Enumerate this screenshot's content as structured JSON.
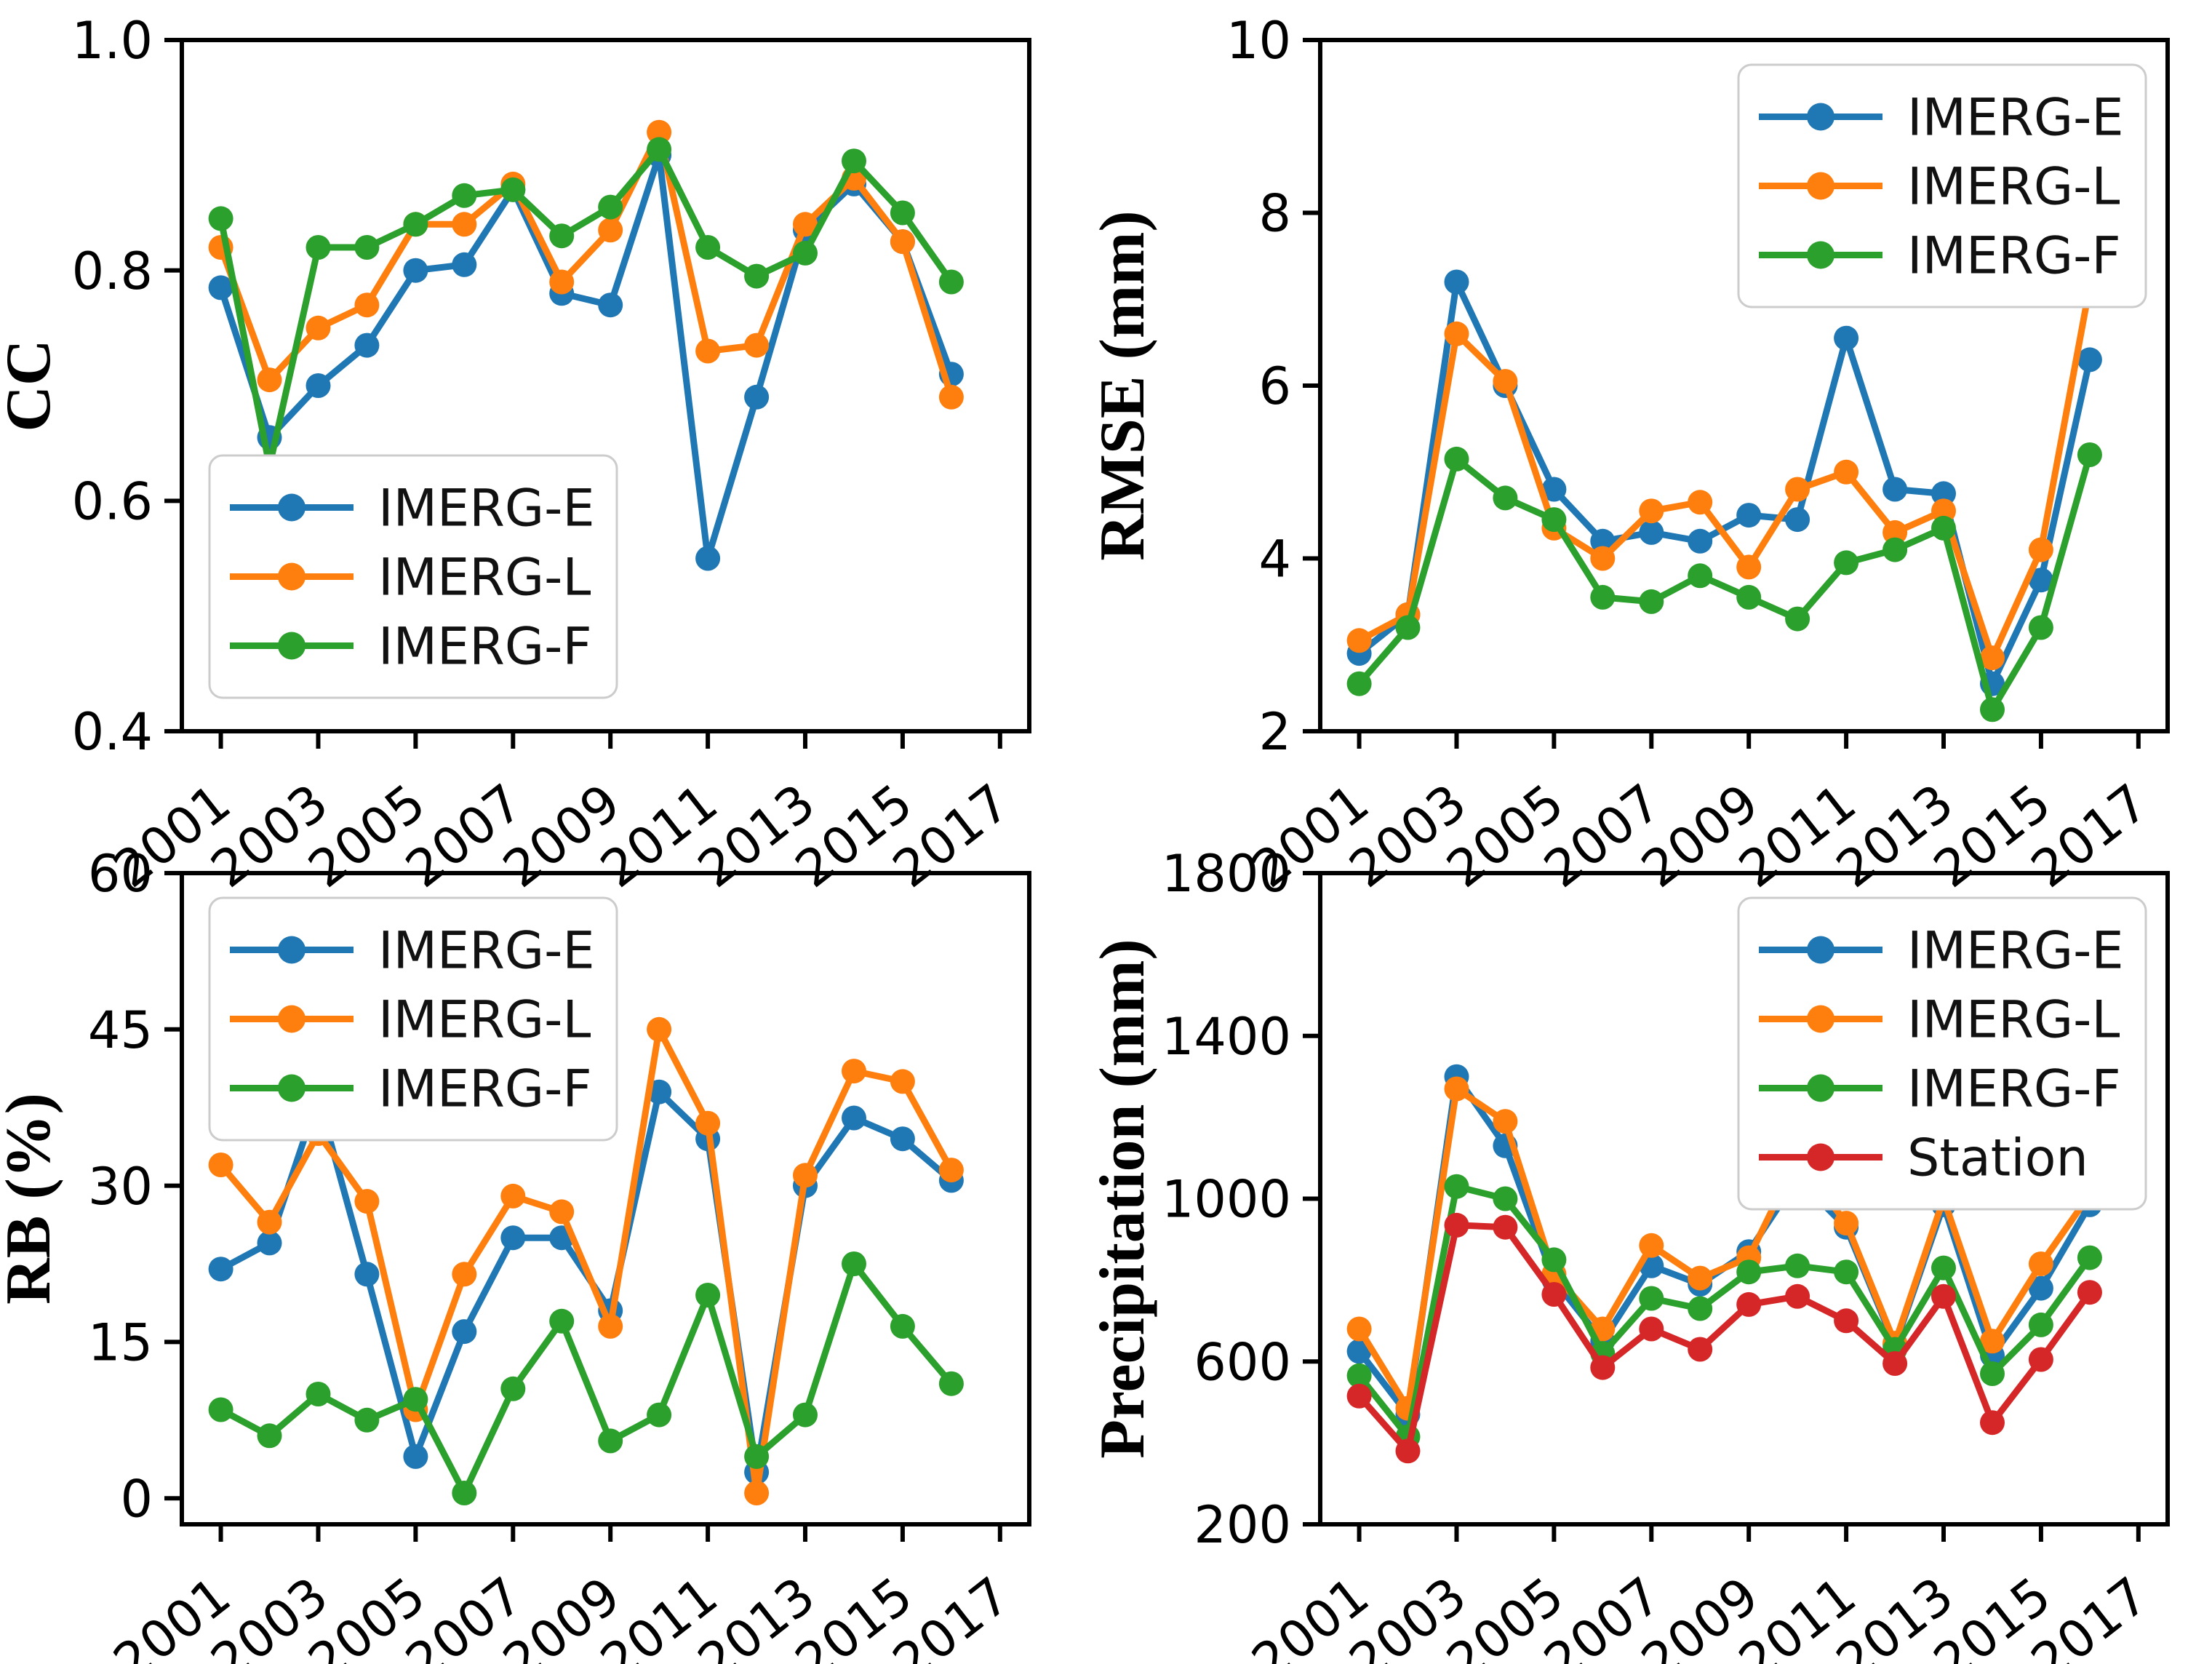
{
  "figure": {
    "background": "#ffffff",
    "colors": {
      "IMERG-E": "#1f77b4",
      "IMERG-L": "#ff7f0e",
      "IMERG-F": "#2ca02c",
      "Station": "#d62728"
    },
    "x_tick_labels": [
      "2001",
      "2003",
      "2005",
      "2007",
      "2009",
      "2011",
      "2013",
      "2015",
      "2017"
    ],
    "x_tick_years": [
      2001,
      2003,
      2005,
      2007,
      2009,
      2011,
      2013,
      2015,
      2017
    ]
  },
  "chart_data": [
    {
      "id": "cc",
      "type": "line",
      "title": "",
      "xlabel": "",
      "ylabel": "CC",
      "grid": false,
      "legend_position": "lower-left",
      "xlim": [
        2000.2,
        2017.6
      ],
      "ylim": [
        0.4,
        1.0
      ],
      "yticks": [
        0.4,
        0.6,
        0.8,
        1.0
      ],
      "ytick_labels": [
        "0.4",
        "0.6",
        "0.8",
        "1.0"
      ],
      "x": [
        2001,
        2002,
        2003,
        2004,
        2005,
        2006,
        2007,
        2008,
        2009,
        2010,
        2011,
        2012,
        2013,
        2014,
        2015,
        2016
      ],
      "series": [
        {
          "name": "IMERG-E",
          "color": "#1f77b4",
          "values": [
            0.785,
            0.655,
            0.7,
            0.735,
            0.8,
            0.805,
            0.87,
            0.78,
            0.77,
            0.9,
            0.55,
            0.69,
            0.835,
            0.875,
            0.825,
            0.71
          ]
        },
        {
          "name": "IMERG-L",
          "color": "#ff7f0e",
          "values": [
            0.82,
            0.705,
            0.75,
            0.77,
            0.84,
            0.84,
            0.875,
            0.79,
            0.835,
            0.92,
            0.73,
            0.735,
            0.84,
            0.88,
            0.825,
            0.69
          ]
        },
        {
          "name": "IMERG-F",
          "color": "#2ca02c",
          "values": [
            0.845,
            0.63,
            0.82,
            0.82,
            0.84,
            0.865,
            0.87,
            0.83,
            0.855,
            0.905,
            0.82,
            0.795,
            0.815,
            0.895,
            0.85,
            0.79
          ]
        }
      ]
    },
    {
      "id": "rmse",
      "type": "line",
      "title": "",
      "xlabel": "",
      "ylabel": "RMSE (mm)",
      "grid": false,
      "legend_position": "upper-right",
      "xlim": [
        2000.2,
        2017.6
      ],
      "ylim": [
        2,
        10
      ],
      "yticks": [
        2,
        4,
        6,
        8,
        10
      ],
      "ytick_labels": [
        "2",
        "4",
        "6",
        "8",
        "10"
      ],
      "x": [
        2001,
        2002,
        2003,
        2004,
        2005,
        2006,
        2007,
        2008,
        2009,
        2010,
        2011,
        2012,
        2013,
        2014,
        2015,
        2016
      ],
      "series": [
        {
          "name": "IMERG-E",
          "color": "#1f77b4",
          "values": [
            2.9,
            3.35,
            7.2,
            6.0,
            4.8,
            4.2,
            4.3,
            4.2,
            4.5,
            4.45,
            6.55,
            4.8,
            4.75,
            2.55,
            3.75,
            6.3
          ]
        },
        {
          "name": "IMERG-L",
          "color": "#ff7f0e",
          "values": [
            3.05,
            3.35,
            6.6,
            6.05,
            4.35,
            4.0,
            4.55,
            4.65,
            3.9,
            4.8,
            5.0,
            4.3,
            4.55,
            2.85,
            4.1,
            7.15
          ]
        },
        {
          "name": "IMERG-F",
          "color": "#2ca02c",
          "values": [
            2.55,
            3.2,
            5.15,
            4.7,
            4.45,
            3.55,
            3.5,
            3.8,
            3.55,
            3.3,
            3.95,
            4.1,
            4.35,
            2.25,
            3.2,
            5.2
          ]
        }
      ]
    },
    {
      "id": "rb",
      "type": "line",
      "title": "",
      "xlabel": "",
      "ylabel": "RB (%)",
      "grid": false,
      "legend_position": "upper-left",
      "xlim": [
        2000.2,
        2017.6
      ],
      "ylim": [
        -2.5,
        60
      ],
      "yticks": [
        0,
        15,
        30,
        45,
        60
      ],
      "ytick_labels": [
        "0",
        "15",
        "30",
        "45",
        "60"
      ],
      "x": [
        2001,
        2002,
        2003,
        2004,
        2005,
        2006,
        2007,
        2008,
        2009,
        2010,
        2011,
        2012,
        2013,
        2014,
        2015,
        2016
      ],
      "series": [
        {
          "name": "IMERG-E",
          "color": "#1f77b4",
          "values": [
            22,
            24.5,
            38.5,
            21.5,
            4,
            16,
            25,
            25,
            18,
            39,
            34.5,
            2.5,
            30,
            36.5,
            34.5,
            30.5
          ]
        },
        {
          "name": "IMERG-L",
          "color": "#ff7f0e",
          "values": [
            32,
            26.5,
            35,
            28.5,
            8.5,
            21.5,
            29,
            27.5,
            16.5,
            45,
            36,
            0.5,
            31,
            41,
            40,
            31.5
          ]
        },
        {
          "name": "IMERG-F",
          "color": "#2ca02c",
          "values": [
            8.5,
            6,
            10,
            7.5,
            9.5,
            0.5,
            10.5,
            17,
            5.5,
            8,
            19.5,
            4,
            8,
            22.5,
            16.5,
            11
          ]
        }
      ]
    },
    {
      "id": "precip",
      "type": "line",
      "title": "",
      "xlabel": "",
      "ylabel": "Precipitation (mm)",
      "grid": false,
      "legend_position": "upper-right",
      "xlim": [
        2000.2,
        2017.6
      ],
      "ylim": [
        200,
        1800
      ],
      "yticks": [
        200,
        600,
        1000,
        1400,
        1800
      ],
      "ytick_labels": [
        "200",
        "600",
        "1000",
        "1400",
        "1800"
      ],
      "x": [
        2001,
        2002,
        2003,
        2004,
        2005,
        2006,
        2007,
        2008,
        2009,
        2010,
        2011,
        2012,
        2013,
        2014,
        2015,
        2016
      ],
      "series": [
        {
          "name": "IMERG-E",
          "color": "#1f77b4",
          "values": [
            625,
            470,
            1300,
            1130,
            800,
            650,
            835,
            790,
            870,
            1050,
            930,
            640,
            985,
            615,
            780,
            985
          ]
        },
        {
          "name": "IMERG-L",
          "color": "#ff7f0e",
          "values": [
            680,
            485,
            1270,
            1190,
            815,
            680,
            885,
            805,
            855,
            1100,
            940,
            645,
            1000,
            650,
            840,
            1010
          ]
        },
        {
          "name": "IMERG-F",
          "color": "#2ca02c",
          "values": [
            565,
            415,
            1030,
            1000,
            850,
            620,
            755,
            730,
            820,
            835,
            820,
            630,
            830,
            570,
            690,
            855
          ]
        },
        {
          "name": "Station",
          "color": "#d62728",
          "values": [
            515,
            380,
            935,
            930,
            765,
            585,
            680,
            630,
            740,
            760,
            700,
            595,
            760,
            450,
            605,
            770
          ]
        }
      ]
    }
  ]
}
